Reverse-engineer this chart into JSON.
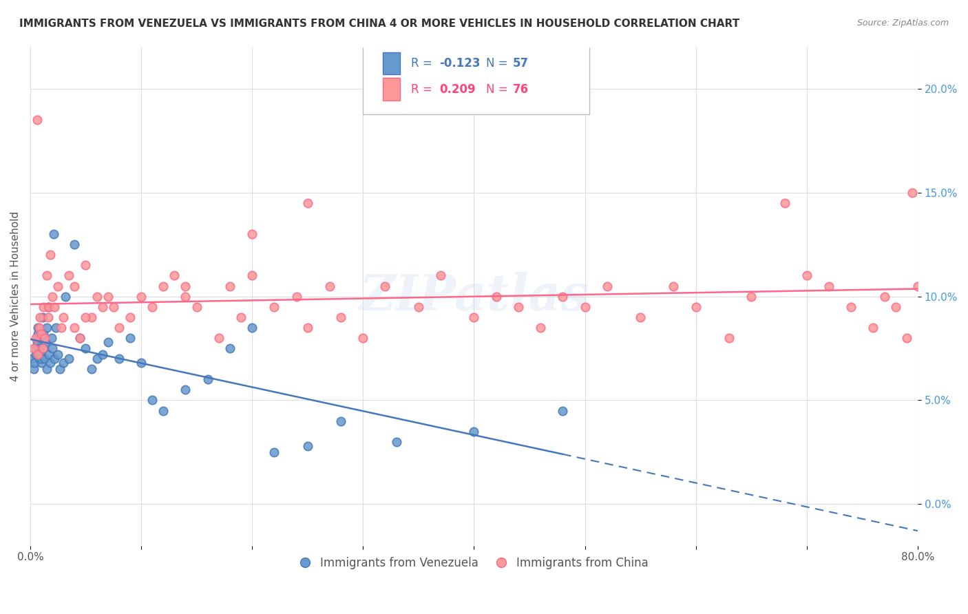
{
  "title": "IMMIGRANTS FROM VENEZUELA VS IMMIGRANTS FROM CHINA 4 OR MORE VEHICLES IN HOUSEHOLD CORRELATION CHART",
  "source": "Source: ZipAtlas.com",
  "ylabel": "4 or more Vehicles in Household",
  "xlim": [
    0.0,
    80.0
  ],
  "ylim": [
    -2.0,
    22.0
  ],
  "yticks": [
    0.0,
    5.0,
    10.0,
    15.0,
    20.0
  ],
  "xticks": [
    0.0,
    10.0,
    20.0,
    30.0,
    40.0,
    50.0,
    60.0,
    70.0,
    80.0
  ],
  "venezuela_R": -0.123,
  "venezuela_N": 57,
  "china_R": 0.209,
  "china_N": 76,
  "venezuela_color": "#6699CC",
  "china_color": "#FF9999",
  "venezuela_line_color": "#4477BB",
  "china_line_color": "#FF6688",
  "watermark": "ZIPatlas",
  "venezuela_label": "Immigrants from Venezuela",
  "china_label": "Immigrants from China",
  "venezuela_x": [
    0.2,
    0.3,
    0.4,
    0.5,
    0.5,
    0.6,
    0.6,
    0.7,
    0.7,
    0.8,
    0.8,
    0.9,
    0.9,
    1.0,
    1.0,
    1.1,
    1.2,
    1.2,
    1.3,
    1.4,
    1.5,
    1.5,
    1.6,
    1.7,
    1.8,
    1.9,
    2.0,
    2.1,
    2.2,
    2.3,
    2.5,
    2.7,
    3.0,
    3.2,
    3.5,
    4.0,
    4.5,
    5.0,
    5.5,
    6.0,
    6.5,
    7.0,
    8.0,
    9.0,
    10.0,
    11.0,
    12.0,
    14.0,
    16.0,
    18.0,
    20.0,
    22.0,
    25.0,
    28.0,
    33.0,
    40.0,
    48.0
  ],
  "venezuela_y": [
    7.0,
    6.5,
    6.8,
    7.2,
    7.5,
    8.0,
    7.8,
    8.5,
    8.2,
    7.0,
    7.5,
    8.0,
    7.2,
    6.8,
    7.0,
    9.0,
    7.5,
    8.2,
    7.0,
    7.8,
    8.5,
    6.5,
    9.5,
    7.2,
    6.8,
    8.0,
    7.5,
    13.0,
    7.0,
    8.5,
    7.2,
    6.5,
    6.8,
    10.0,
    7.0,
    12.5,
    8.0,
    7.5,
    6.5,
    7.0,
    7.2,
    7.8,
    7.0,
    8.0,
    6.8,
    5.0,
    4.5,
    5.5,
    6.0,
    7.5,
    8.5,
    2.5,
    2.8,
    4.0,
    3.0,
    3.5,
    4.5
  ],
  "china_x": [
    0.3,
    0.5,
    0.6,
    0.7,
    0.8,
    0.9,
    1.0,
    1.1,
    1.2,
    1.3,
    1.5,
    1.6,
    1.7,
    1.8,
    2.0,
    2.2,
    2.5,
    2.8,
    3.0,
    3.5,
    4.0,
    4.5,
    5.0,
    5.5,
    6.0,
    6.5,
    7.0,
    7.5,
    8.0,
    9.0,
    10.0,
    11.0,
    12.0,
    13.0,
    14.0,
    15.0,
    17.0,
    18.0,
    19.0,
    20.0,
    22.0,
    24.0,
    25.0,
    27.0,
    28.0,
    30.0,
    32.0,
    35.0,
    37.0,
    40.0,
    42.0,
    44.0,
    46.0,
    48.0,
    50.0,
    52.0,
    55.0,
    58.0,
    60.0,
    63.0,
    65.0,
    68.0,
    70.0,
    72.0,
    74.0,
    76.0,
    77.0,
    78.0,
    79.0,
    79.5,
    80.0,
    25.0,
    20.0,
    14.0,
    5.0,
    4.0
  ],
  "china_y": [
    7.5,
    8.0,
    18.5,
    7.2,
    8.5,
    9.0,
    8.2,
    7.5,
    9.5,
    8.0,
    11.0,
    9.0,
    9.5,
    12.0,
    10.0,
    9.5,
    10.5,
    8.5,
    9.0,
    11.0,
    10.5,
    8.0,
    11.5,
    9.0,
    10.0,
    9.5,
    10.0,
    9.5,
    8.5,
    9.0,
    10.0,
    9.5,
    10.5,
    11.0,
    10.0,
    9.5,
    8.0,
    10.5,
    9.0,
    11.0,
    9.5,
    10.0,
    8.5,
    10.5,
    9.0,
    8.0,
    10.5,
    9.5,
    11.0,
    9.0,
    10.0,
    9.5,
    8.5,
    10.0,
    9.5,
    10.5,
    9.0,
    10.5,
    9.5,
    8.0,
    10.0,
    14.5,
    11.0,
    10.5,
    9.5,
    8.5,
    10.0,
    9.5,
    8.0,
    15.0,
    10.5,
    14.5,
    13.0,
    10.5,
    9.0,
    8.5
  ]
}
